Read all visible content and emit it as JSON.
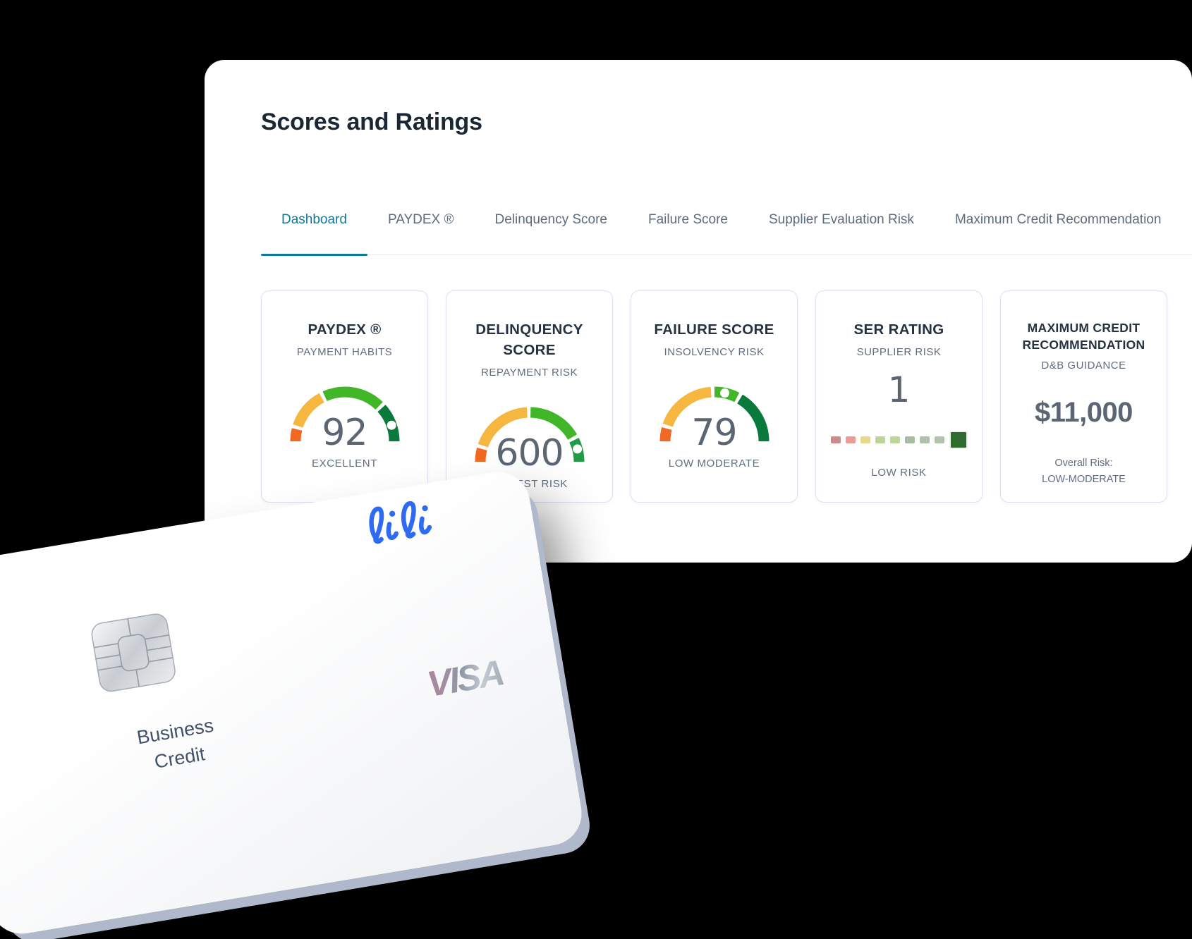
{
  "page": {
    "background": "#000000"
  },
  "panel": {
    "title": "Scores and Ratings",
    "tabs": [
      {
        "label": "Dashboard",
        "active": true
      },
      {
        "label": "PAYDEX ®",
        "active": false
      },
      {
        "label": "Delinquency Score",
        "active": false
      },
      {
        "label": "Failure Score",
        "active": false
      },
      {
        "label": "Supplier Evaluation Risk",
        "active": false
      },
      {
        "label": "Maximum Credit Recommendation",
        "active": false
      }
    ]
  },
  "chart_data": [
    {
      "type": "gauge",
      "title": "PAYDEX ®",
      "subtitle": "PAYMENT HABITS",
      "value": 92,
      "rating": "EXCELLENT"
    },
    {
      "type": "gauge",
      "title": "DELINQUENCY SCORE",
      "subtitle": "REPAYMENT RISK",
      "value": 600,
      "rating": "LOWEST RISK"
    },
    {
      "type": "gauge",
      "title": "FAILURE SCORE",
      "subtitle": "INSOLVENCY RISK",
      "value": 79,
      "rating": "LOW MODERATE"
    },
    {
      "type": "scale",
      "title": "SER RATING",
      "subtitle": "SUPPLIER RISK",
      "value": 1,
      "rating": "LOW RISK",
      "scale_position": "9 of 9 (rightmost dark green)"
    },
    {
      "type": "value",
      "title": "MAXIMUM CREDIT RECOMMENDATION",
      "subtitle": "D&B GUIDANCE",
      "value": "$11,000",
      "rating": "Overall Risk: LOW-MODERATE"
    }
  ],
  "cards": [
    {
      "title": "PAYDEX ®",
      "subtitle": "PAYMENT HABITS",
      "value": "92",
      "label": "EXCELLENT",
      "gauge": {
        "segments": [
          {
            "from": 180,
            "to": 166,
            "color": "#f26822"
          },
          {
            "from": 162,
            "to": 118,
            "color": "#f5b73f"
          },
          {
            "from": 114,
            "to": 46,
            "color": "#42b629"
          },
          {
            "from": 42,
            "to": 0,
            "color": "#0a7a3c"
          }
        ],
        "dot": 19
      }
    },
    {
      "title": "DELINQUENCY SCORE",
      "subtitle": "REPAYMENT RISK",
      "value": "600",
      "label": "LOWEST RISK",
      "gauge": {
        "segments": [
          {
            "from": 180,
            "to": 165,
            "color": "#f26822"
          },
          {
            "from": 161,
            "to": 93,
            "color": "#f5b73f"
          },
          {
            "from": 89,
            "to": 30,
            "color": "#42b629"
          },
          {
            "from": 26,
            "to": 0,
            "color": "#1f9c45"
          }
        ],
        "dot": 15
      }
    },
    {
      "title": "FAILURE SCORE",
      "subtitle": "INSOLVENCY RISK",
      "value": "79",
      "label": "LOW MODERATE",
      "gauge": {
        "segments": [
          {
            "from": 180,
            "to": 165,
            "color": "#f26822"
          },
          {
            "from": 161,
            "to": 94,
            "color": "#f5b73f"
          },
          {
            "from": 90,
            "to": 63,
            "color": "#42b629"
          },
          {
            "from": 59,
            "to": 0,
            "color": "#0a7a3c"
          }
        ],
        "dot": 78
      }
    },
    {
      "title": "SER RATING",
      "subtitle": "SUPPLIER RISK",
      "value": "1",
      "label": "LOW RISK",
      "bars": [
        {
          "color": "#c98e8a",
          "big": false
        },
        {
          "color": "#ef9a96",
          "big": false
        },
        {
          "color": "#e7db8b",
          "big": false
        },
        {
          "color": "#bcd59b",
          "big": false
        },
        {
          "color": "#bdd69b",
          "big": false
        },
        {
          "color": "#a6bda2",
          "big": false
        },
        {
          "color": "#adc3a9",
          "big": false
        },
        {
          "color": "#b0c5ab",
          "big": false
        },
        {
          "color": "#2f6b2e",
          "big": true
        }
      ]
    },
    {
      "title": "MAXIMUM CREDIT RECOMMENDATION",
      "subtitle": "D&B GUIDANCE",
      "value": "$11,000",
      "label_line1": "Overall Risk:",
      "label_line2": "LOW-MODERATE"
    }
  ],
  "credit_card": {
    "logo": "lili",
    "brand": "VISA",
    "label_line1": "Business",
    "label_line2": "Credit",
    "accent_blue": "#2e6bf2"
  },
  "colors": {
    "tab_active": "#0e7a9b",
    "gauge_orange": "#f26822",
    "gauge_amber": "#f5b73f",
    "gauge_green": "#42b629",
    "gauge_dark_green": "#0a7a3c"
  }
}
